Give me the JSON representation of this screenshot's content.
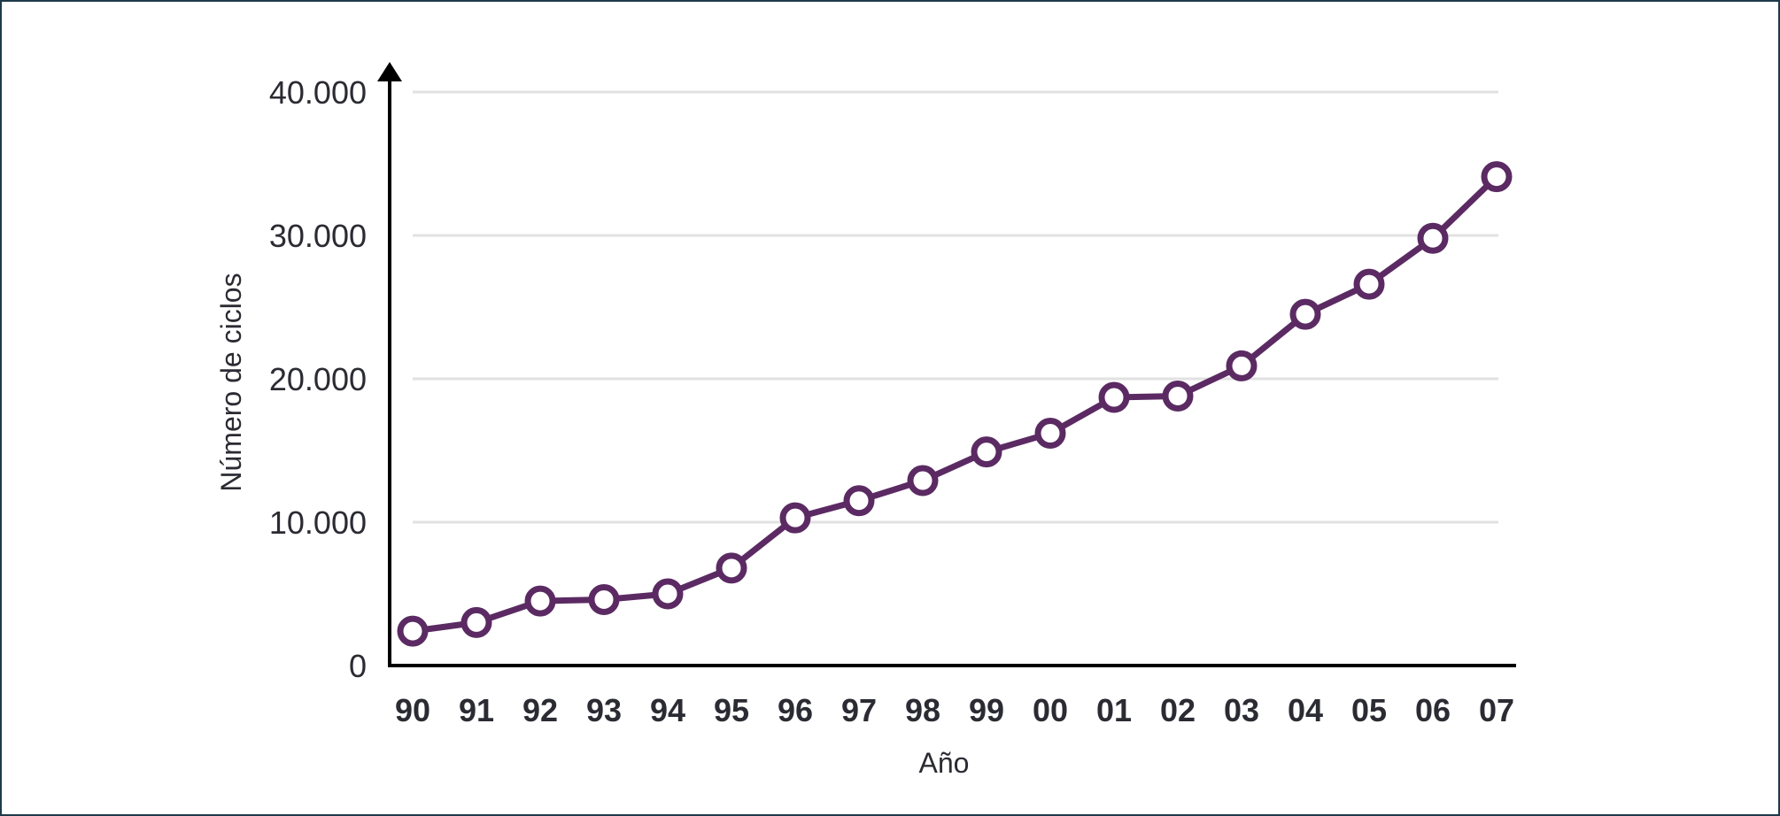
{
  "chart_data": {
    "type": "line",
    "categories": [
      "90",
      "91",
      "92",
      "93",
      "94",
      "95",
      "96",
      "97",
      "98",
      "99",
      "00",
      "01",
      "02",
      "03",
      "04",
      "05",
      "06",
      "07"
    ],
    "series": [
      {
        "values": [
          2400,
          3000,
          4500,
          4600,
          5000,
          6800,
          10300,
          11500,
          12900,
          14900,
          16200,
          18700,
          18800,
          20900,
          24500,
          26600,
          29800,
          34100
        ],
        "color": "#5b2a63"
      }
    ],
    "title": "",
    "xlabel": "Año",
    "ylabel": "Número de ciclos",
    "ylim": [
      0,
      40000
    ],
    "yticks": [
      0,
      10000,
      20000,
      30000,
      40000
    ],
    "ytick_labels": [
      "0",
      "10.000",
      "20.000",
      "30.000",
      "40.000"
    ],
    "grid": true,
    "colors": {
      "line": "#5b2a63",
      "grid": "#e2e2e2",
      "axis": "#000000",
      "frame": "#1e3a4a"
    }
  }
}
